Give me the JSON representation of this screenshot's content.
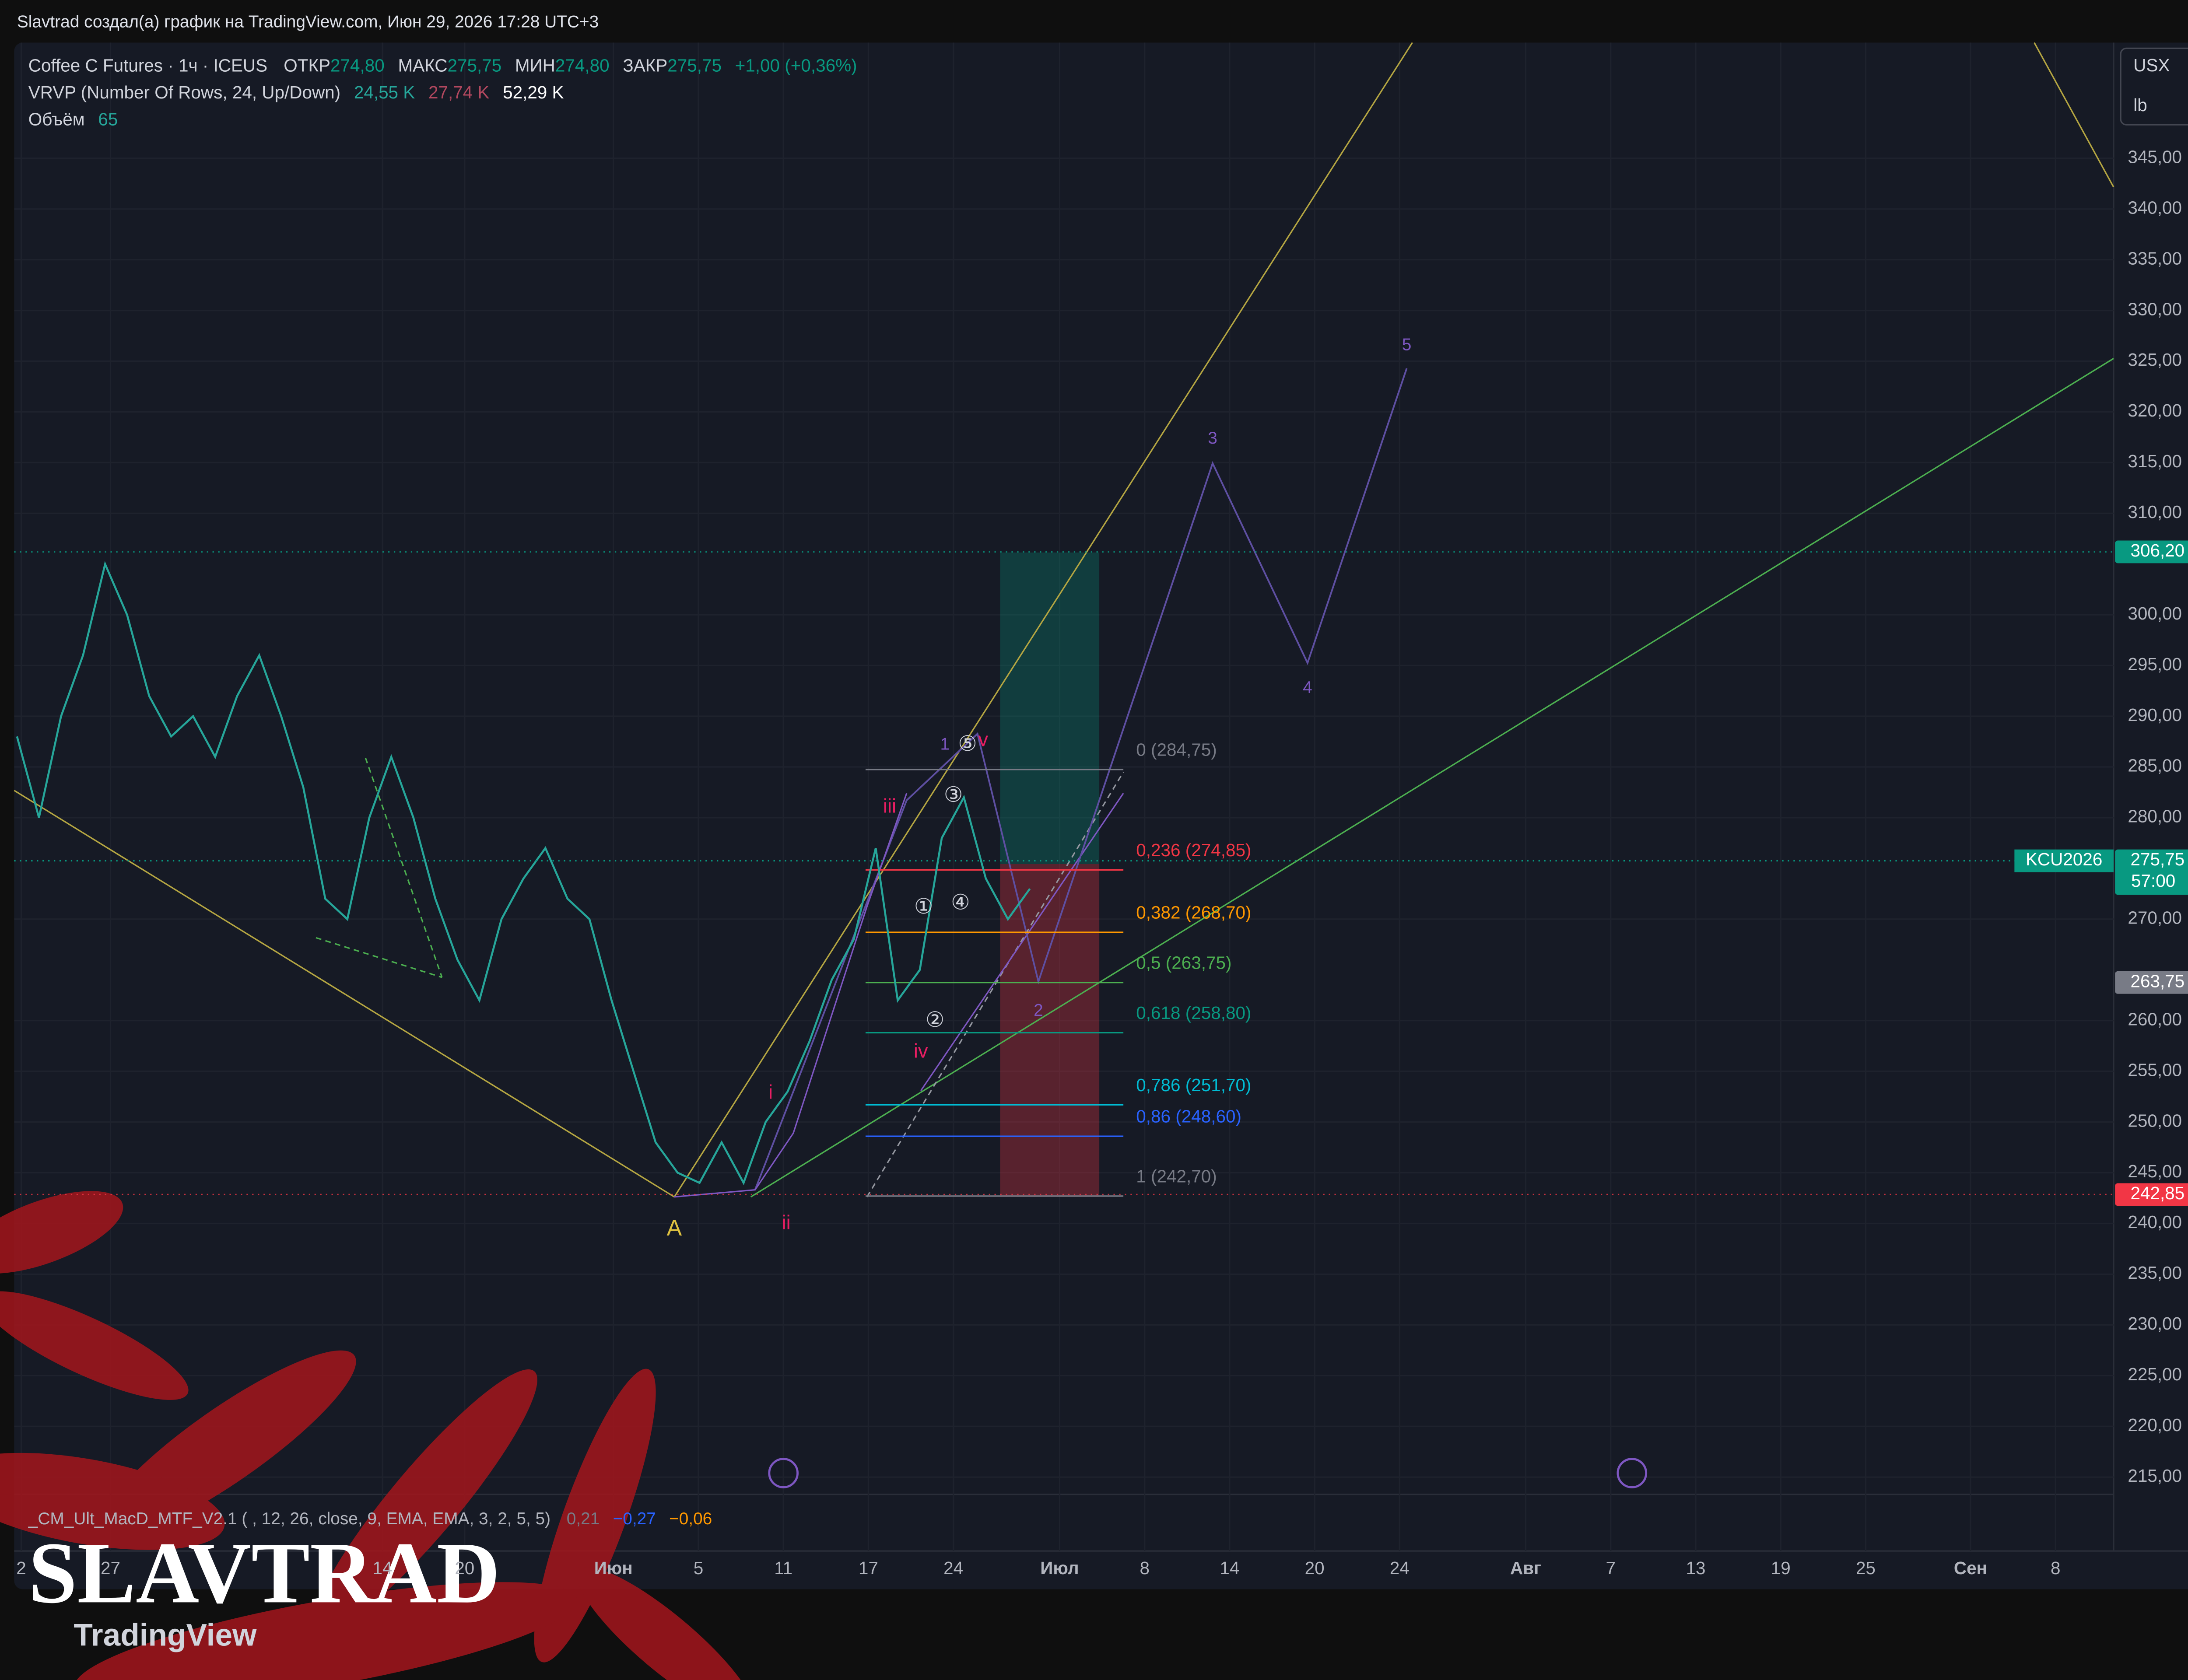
{
  "header": {
    "title": "Slavtrad создал(а) график на TradingView.com, Июн 29, 2026 17:28 UTC+3"
  },
  "legend": {
    "symbol": "Coffee C Futures · 1ч · ICEUS",
    "ohlc": [
      {
        "label": "ОТКР",
        "value": "274,80"
      },
      {
        "label": "МАКС",
        "value": "275,75"
      },
      {
        "label": "МИН",
        "value": "274,80"
      },
      {
        "label": "ЗАКР",
        "value": "275,75"
      }
    ],
    "change": "+1,00 (+0,36%)",
    "vrvp": {
      "name": "VRVP (Number Of Rows, 24, Up/Down)",
      "up": "24,55 K",
      "down": "27,74 K",
      "total": "52,29 K"
    },
    "volume": {
      "name": "Объём",
      "value": "65"
    },
    "macd": {
      "name": "_CM_Ult_MacD_MTF_V2.1 ( , 12, 26, close, 9, EMA, EMA, 3, 2, 5, 5)",
      "values": [
        "0,21",
        "−0,27",
        "−0,06"
      ]
    }
  },
  "scale": {
    "currency": "USX",
    "unit": "lb"
  },
  "watermark": {
    "author": "SLAVTRAD",
    "brand": "TradingView"
  },
  "chart_data": {
    "type": "line",
    "color": "#26a69a",
    "values": [
      288,
      280,
      290,
      296,
      305,
      300,
      292,
      288,
      290,
      286,
      292,
      296,
      290,
      283,
      272,
      270,
      280,
      286,
      280,
      272,
      266,
      262,
      270,
      274,
      277,
      272,
      270,
      262,
      255,
      248,
      245,
      244,
      248,
      244,
      250,
      253,
      258,
      264,
      268,
      277,
      262,
      265,
      278,
      282,
      274,
      270,
      273
    ],
    "ylim": [
      213.3,
      356.4
    ],
    "yticks": [
      {
        "value": 345,
        "label": "345,00"
      },
      {
        "value": 340,
        "label": "340,00"
      },
      {
        "value": 335,
        "label": "335,00"
      },
      {
        "value": 330,
        "label": "330,00"
      },
      {
        "value": 325,
        "label": "325,00"
      },
      {
        "value": 320,
        "label": "320,00"
      },
      {
        "value": 315,
        "label": "315,00"
      },
      {
        "value": 310,
        "label": "310,00"
      },
      {
        "value": 300,
        "label": "300,00"
      },
      {
        "value": 295,
        "label": "295,00"
      },
      {
        "value": 290,
        "label": "290,00"
      },
      {
        "value": 285,
        "label": "285,00"
      },
      {
        "value": 280,
        "label": "280,00"
      },
      {
        "value": 270,
        "label": "270,00"
      },
      {
        "value": 260,
        "label": "260,00"
      },
      {
        "value": 255,
        "label": "255,00"
      },
      {
        "value": 250,
        "label": "250,00"
      },
      {
        "value": 245,
        "label": "245,00"
      },
      {
        "value": 240,
        "label": "240,00"
      },
      {
        "value": 235,
        "label": "235,00"
      },
      {
        "value": 230,
        "label": "230,00"
      },
      {
        "value": 225,
        "label": "225,00"
      },
      {
        "value": 220,
        "label": "220,00"
      },
      {
        "value": 215,
        "label": "215,00"
      }
    ],
    "x_labels": [
      "2",
      "27",
      "14",
      "20",
      "Июн",
      "5",
      "11",
      "17",
      "24",
      "Июл",
      "8",
      "14",
      "20",
      "24",
      "Авг",
      "7",
      "13",
      "19",
      "25",
      "Сен",
      "8"
    ],
    "fib": [
      {
        "label": "0 (284,75)",
        "value": 284.75,
        "color": "#787b86"
      },
      {
        "label": "0,236 (274,85)",
        "value": 274.85,
        "color": "#f23645"
      },
      {
        "label": "0,382 (268,70)",
        "value": 268.7,
        "color": "#ff9800"
      },
      {
        "label": "0,5 (263,75)",
        "value": 263.75,
        "color": "#4caf50"
      },
      {
        "label": "0,618 (258,80)",
        "value": 258.8,
        "color": "#089981"
      },
      {
        "label": "0,786 (251,70)",
        "value": 251.7,
        "color": "#00bcd4"
      },
      {
        "label": "0,86 (248,60)",
        "value": 248.6,
        "color": "#2962ff"
      },
      {
        "label": "1 (242,70)",
        "value": 242.7,
        "color": "#787b86"
      }
    ],
    "price_badges": [
      {
        "value": 306.2,
        "label": "306,20",
        "color": "#089981"
      },
      {
        "value": 263.75,
        "label": "263,75",
        "color": "#787b86"
      },
      {
        "value": 242.85,
        "label": "242,85",
        "color": "#f23645"
      }
    ],
    "symbol_badge": {
      "ticker": "KCU2026",
      "price": {
        "value": 275.75,
        "label": "275,75"
      },
      "countdown": "57:00"
    },
    "annotations": [
      "A",
      "i",
      "ii",
      "iii",
      "iv",
      "v",
      "1",
      "2",
      "3",
      "4",
      "5",
      "①",
      "②",
      "③",
      "④",
      "⑤"
    ]
  }
}
